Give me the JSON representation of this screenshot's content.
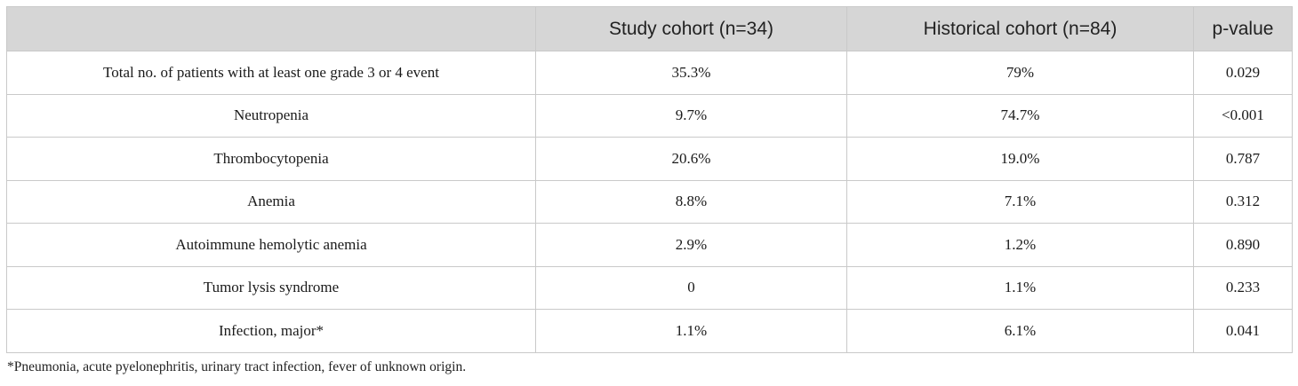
{
  "table": {
    "headers": [
      "",
      "Study cohort (n=34)",
      "Historical cohort (n=84)",
      "p-value"
    ],
    "rows": [
      [
        "Total no. of patients with at least one grade 3 or 4 event",
        "35.3%",
        "79%",
        "0.029"
      ],
      [
        "Neutropenia",
        "9.7%",
        "74.7%",
        "<0.001"
      ],
      [
        "Thrombocytopenia",
        "20.6%",
        "19.0%",
        "0.787"
      ],
      [
        "Anemia",
        "8.8%",
        "7.1%",
        "0.312"
      ],
      [
        "Autoimmune hemolytic anemia",
        "2.9%",
        "1.2%",
        "0.890"
      ],
      [
        "Tumor lysis syndrome",
        "0",
        "1.1%",
        "0.233"
      ],
      [
        "Infection, major*",
        "1.1%",
        "6.1%",
        "0.041"
      ]
    ]
  },
  "footnote": "*Pneumonia, acute pyelonephritis, urinary tract infection, fever of unknown origin."
}
